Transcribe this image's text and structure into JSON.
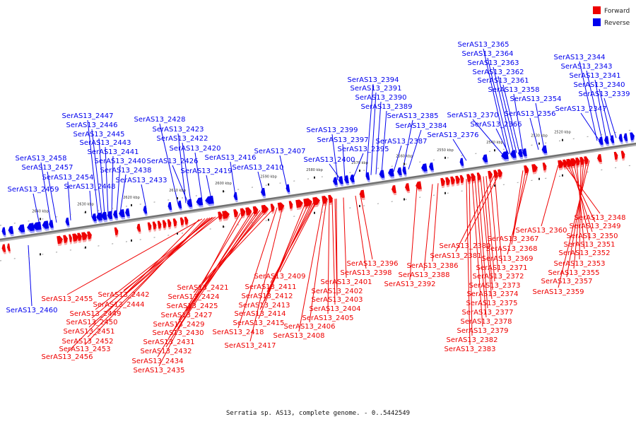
{
  "legend": {
    "forward_label": "Forward",
    "reverse_label": "Reverse",
    "forward_color": "#ee0000",
    "reverse_color": "#0000ee"
  },
  "caption": "Serratia sp. AS13, complete genome. - 0..5442549",
  "axis": {
    "ticks_kbp": [
      2520,
      2530,
      2540,
      2550,
      2560,
      2570,
      2580,
      2590,
      2600,
      2610,
      2620,
      2630,
      2640
    ],
    "tick_suffix": " kbp"
  },
  "reverse_genes_above": [
    "SerAS13_2344",
    "SerAS13_2343",
    "SerAS13_2341",
    "SerAS13_2340",
    "SerAS13_2339",
    "SerAS13_2347",
    "SerAS13_2365",
    "SerAS13_2364",
    "SerAS13_2363",
    "SerAS13_2362",
    "SerAS13_2361",
    "SerAS13_2358",
    "SerAS13_2354",
    "SerAS13_2356",
    "SerAS13_2370",
    "SerAS13_2366",
    "SerAS13_2376",
    "SerAS13_2394",
    "SerAS13_2391",
    "SerAS13_2390",
    "SerAS13_2389",
    "SerAS13_2385",
    "SerAS13_2384",
    "SerAS13_2387",
    "SerAS13_2399",
    "SerAS13_2397",
    "SerAS13_2395",
    "SerAS13_2400",
    "SerAS13_2407",
    "SerAS13_2410",
    "SerAS13_2416",
    "SerAS13_2419",
    "SerAS13_2428",
    "SerAS13_2423",
    "SerAS13_2422",
    "SerAS13_2420",
    "SerAS13_2426",
    "SerAS13_2447",
    "SerAS13_2446",
    "SerAS13_2445",
    "SerAS13_2443",
    "SerAS13_2441",
    "SerAS13_2440",
    "SerAS13_2438",
    "SerAS13_2433",
    "SerAS13_2448",
    "SerAS13_2458",
    "SerAS13_2457",
    "SerAS13_2454",
    "SerAS13_2459"
  ],
  "reverse_genes_below": [
    "SerAS13_2460"
  ],
  "forward_genes_below": [
    "SerAS13_2348",
    "SerAS13_2349",
    "SerAS13_2350",
    "SerAS13_2351",
    "SerAS13_2352",
    "SerAS13_2353",
    "SerAS13_2355",
    "SerAS13_2357",
    "SerAS13_2359",
    "SerAS13_2360",
    "SerAS13_2367",
    "SerAS13_2368",
    "SerAS13_2369",
    "SerAS13_2371",
    "SerAS13_2372",
    "SerAS13_2373",
    "SerAS13_2374",
    "SerAS13_2375",
    "SerAS13_2377",
    "SerAS13_2378",
    "SerAS13_2379",
    "SerAS13_2380",
    "SerAS13_2381",
    "SerAS13_2382",
    "SerAS13_2383",
    "SerAS13_2386",
    "SerAS13_2388",
    "SerAS13_2392",
    "SerAS13_2396",
    "SerAS13_2398",
    "SerAS13_2401",
    "SerAS13_2402",
    "SerAS13_2403",
    "SerAS13_2404",
    "SerAS13_2405",
    "SerAS13_2406",
    "SerAS13_2408",
    "SerAS13_2409",
    "SerAS13_2411",
    "SerAS13_2412",
    "SerAS13_2413",
    "SerAS13_2414",
    "SerAS13_2415",
    "SerAS13_2418",
    "SerAS13_2417",
    "SerAS13_2421",
    "SerAS13_2424",
    "SerAS13_2425",
    "SerAS13_2427",
    "SerAS13_2429",
    "SerAS13_2430",
    "SerAS13_2431",
    "SerAS13_2432",
    "SerAS13_2434",
    "SerAS13_2435",
    "SerAS13_2442",
    "SerAS13_2444",
    "SerAS13_2449",
    "SerAS13_2450",
    "SerAS13_2451",
    "SerAS13_2452",
    "SerAS13_2453",
    "SerAS13_2455",
    "SerAS13_2456"
  ]
}
